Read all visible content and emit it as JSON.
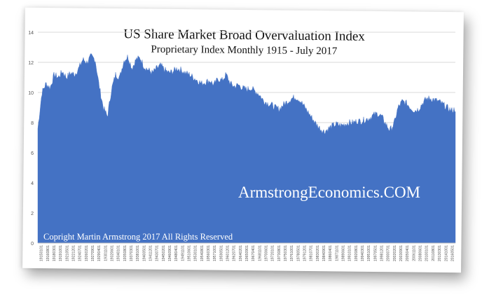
{
  "chart_data": {
    "type": "area",
    "title": "US Share Market Broad Overvaluation Index",
    "subtitle": "Proprietary Index Monthly 1915 - July 2017",
    "xlabel": "",
    "ylabel": "",
    "ylim": [
      0,
      14
    ],
    "yticks": [
      "0",
      "2",
      "4",
      "6",
      "8",
      "10",
      "12",
      "14"
    ],
    "grid": true,
    "legend": "none",
    "color": "#4472c4",
    "watermark": "ArmstrongEconomics.COM",
    "copyright": "Copright Martin Armstrong 2017 All Rights Reserved",
    "xtick_labels": [
      "19150101",
      "19160801",
      "19180301",
      "19191001",
      "19210501",
      "19221201",
      "19240701",
      "19260201",
      "19270901",
      "19290401",
      "19301101",
      "19320601",
      "19340101",
      "19350801",
      "19370301",
      "19381001",
      "19400501",
      "19411201",
      "19430701",
      "19450201",
      "19460901",
      "19480401",
      "19491101",
      "19510601",
      "19530101",
      "19540801",
      "19560301",
      "19571001",
      "19590501",
      "19601201",
      "19620701",
      "19640201",
      "19650901",
      "19670401",
      "19681101",
      "19700601",
      "19720101",
      "19730801",
      "19750301",
      "19761001",
      "19780501",
      "19791201",
      "19810701",
      "19830201",
      "19840901",
      "19860401",
      "19871101",
      "19890601",
      "19910101",
      "19920801",
      "19940301",
      "19951001",
      "19970501",
      "19981201",
      "20000701",
      "20020201",
      "20030901",
      "20050401",
      "20061101",
      "20080601",
      "20100101",
      "20110801",
      "20130301",
      "20141001",
      "20160501"
    ],
    "x": [
      "1915",
      "1916",
      "1917",
      "1918",
      "1919",
      "1920",
      "1921",
      "1922",
      "1923",
      "1924",
      "1925",
      "1926",
      "1927",
      "1928",
      "1929",
      "1930",
      "1931",
      "1932",
      "1933",
      "1934",
      "1935",
      "1936",
      "1937",
      "1938",
      "1939",
      "1940",
      "1941",
      "1942",
      "1943",
      "1944",
      "1945",
      "1946",
      "1947",
      "1948",
      "1949",
      "1950",
      "1951",
      "1952",
      "1953",
      "1954",
      "1955",
      "1956",
      "1957",
      "1958",
      "1959",
      "1960",
      "1961",
      "1962",
      "1963",
      "1964",
      "1965",
      "1966",
      "1967",
      "1968",
      "1969",
      "1970",
      "1971",
      "1972",
      "1973",
      "1974",
      "1975",
      "1976",
      "1977",
      "1978",
      "1979",
      "1980",
      "1981",
      "1982",
      "1983",
      "1984",
      "1985",
      "1986",
      "1987",
      "1988",
      "1989",
      "1990",
      "1991",
      "1992",
      "1993",
      "1994",
      "1995",
      "1996",
      "1997",
      "1998",
      "1999",
      "2000",
      "2001",
      "2002",
      "2003",
      "2004",
      "2005",
      "2006",
      "2007",
      "2008",
      "2009",
      "2010",
      "2011",
      "2012",
      "2013",
      "2014",
      "2015",
      "2016",
      "2017"
    ],
    "values": [
      7.6,
      10.0,
      10.6,
      10.3,
      11.2,
      11.0,
      11.4,
      11.0,
      11.3,
      11.2,
      11.6,
      12.2,
      12.0,
      12.4,
      12.2,
      10.4,
      9.0,
      8.4,
      10.2,
      11.2,
      11.0,
      12.1,
      12.4,
      11.6,
      12.2,
      12.3,
      11.7,
      11.5,
      11.3,
      11.6,
      11.8,
      11.5,
      11.3,
      11.4,
      11.6,
      11.5,
      11.3,
      11.2,
      11.0,
      10.8,
      10.6,
      10.7,
      10.8,
      10.5,
      10.9,
      10.8,
      11.2,
      10.6,
      10.4,
      10.5,
      10.3,
      10.2,
      10.3,
      10.1,
      9.9,
      9.5,
      9.3,
      9.2,
      9.0,
      8.9,
      9.2,
      9.4,
      9.6,
      9.7,
      9.5,
      9.1,
      8.7,
      8.3,
      7.9,
      7.6,
      7.4,
      7.6,
      7.8,
      7.9,
      7.8,
      7.9,
      8.0,
      8.0,
      8.1,
      8.1,
      8.2,
      8.3,
      8.5,
      8.6,
      8.4,
      7.9,
      7.5,
      7.9,
      9.0,
      9.4,
      9.3,
      9.0,
      8.8,
      8.9,
      9.3,
      9.6,
      9.6,
      9.5,
      9.4,
      9.2,
      9.0,
      8.8,
      8.9
    ]
  }
}
